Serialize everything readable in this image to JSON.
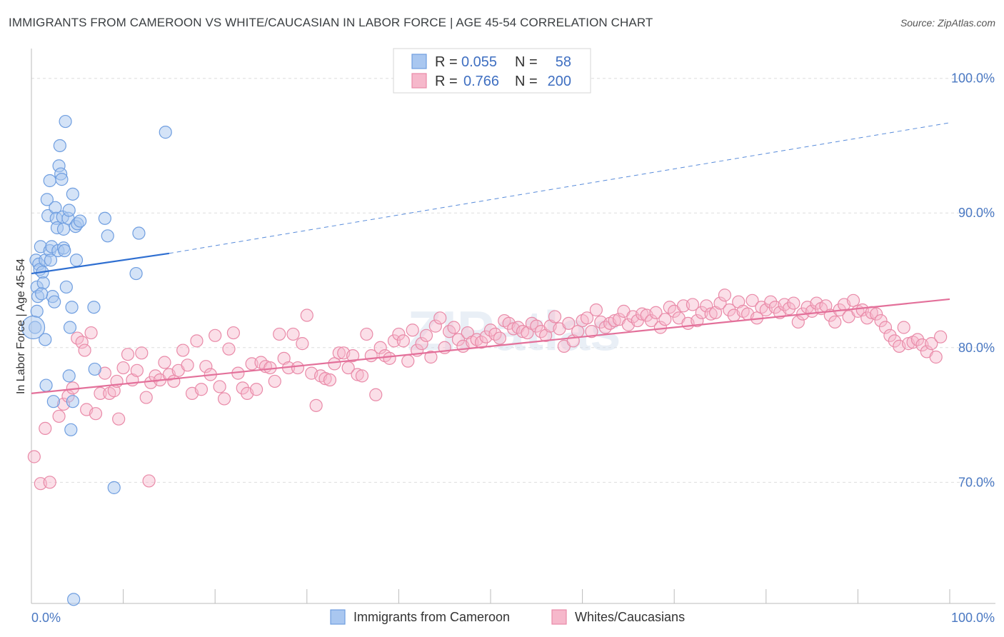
{
  "title": "IMMIGRANTS FROM CAMEROON VS WHITE/CAUCASIAN IN LABOR FORCE | AGE 45-54 CORRELATION CHART",
  "source": "Source: ZipAtlas.com",
  "watermark": "ZIPatlas",
  "colors": {
    "blue_fill": "#a9c7f0",
    "blue_stroke": "#6f9ee0",
    "blue_line": "#2f6fd1",
    "pink_fill": "#f6b8cb",
    "pink_stroke": "#e98aa8",
    "pink_line": "#e3709a",
    "grid": "#dddddd",
    "tick_text": "#4a78c2"
  },
  "legend": {
    "rows": [
      {
        "r_label": "R =",
        "r_value": "0.055",
        "n_label": "N =",
        "n_value": "58"
      },
      {
        "r_label": "R =",
        "r_value": "0.766",
        "n_label": "N =",
        "n_value": "200"
      }
    ]
  },
  "chart_data": {
    "type": "scatter",
    "title": "IMMIGRANTS FROM CAMEROON VS WHITE/CAUCASIAN IN LABOR FORCE | AGE 45-54 CORRELATION CHART",
    "xlabel": "",
    "ylabel": "In Labor Force | Age 45-54",
    "x_tick_labels": [
      "0.0%",
      "100.0%"
    ],
    "y_tick_labels": [
      "70.0%",
      "80.0%",
      "90.0%",
      "100.0%"
    ],
    "y_ticks": [
      70,
      80,
      90,
      100
    ],
    "xlim": [
      0,
      100
    ],
    "ylim": [
      61,
      102
    ],
    "grid": true,
    "legend_position": "bottom",
    "series": [
      {
        "name": "Immigrants from Cameroon",
        "color": "blue",
        "trend": {
          "x": [
            0,
            15
          ],
          "y": [
            85.5,
            87.0
          ],
          "extend_dashed_to": [
            100,
            96.7
          ]
        },
        "points": [
          [
            0.5,
            86.5
          ],
          [
            0.6,
            84.5
          ],
          [
            0.6,
            82.7
          ],
          [
            0.7,
            83.8
          ],
          [
            0.8,
            86.2
          ],
          [
            0.9,
            85.8
          ],
          [
            1.0,
            87.5
          ],
          [
            1.2,
            85.6
          ],
          [
            1.3,
            84.8
          ],
          [
            1.5,
            86.5
          ],
          [
            1.5,
            80.6
          ],
          [
            1.6,
            77.2
          ],
          [
            1.7,
            91.0
          ],
          [
            1.8,
            89.8
          ],
          [
            2.0,
            87.2
          ],
          [
            2.0,
            92.4
          ],
          [
            2.1,
            86.5
          ],
          [
            2.2,
            87.5
          ],
          [
            2.3,
            83.8
          ],
          [
            2.4,
            76.0
          ],
          [
            2.5,
            83.4
          ],
          [
            2.6,
            90.4
          ],
          [
            2.7,
            89.6
          ],
          [
            2.8,
            88.9
          ],
          [
            2.9,
            87.2
          ],
          [
            3.0,
            93.5
          ],
          [
            3.1,
            95.0
          ],
          [
            3.2,
            92.9
          ],
          [
            3.3,
            92.5
          ],
          [
            3.4,
            89.7
          ],
          [
            3.5,
            87.4
          ],
          [
            3.5,
            88.8
          ],
          [
            3.6,
            87.2
          ],
          [
            3.7,
            96.8
          ],
          [
            3.8,
            84.5
          ],
          [
            4.0,
            89.6
          ],
          [
            4.1,
            90.2
          ],
          [
            4.1,
            77.9
          ],
          [
            4.2,
            81.5
          ],
          [
            4.3,
            73.9
          ],
          [
            4.4,
            83.0
          ],
          [
            4.5,
            91.4
          ],
          [
            4.5,
            76.0
          ],
          [
            4.6,
            61.3
          ],
          [
            4.8,
            89.0
          ],
          [
            4.9,
            86.5
          ],
          [
            5.0,
            89.2
          ],
          [
            5.3,
            89.4
          ],
          [
            6.8,
            83.0
          ],
          [
            6.9,
            78.4
          ],
          [
            8.0,
            89.6
          ],
          [
            8.3,
            88.3
          ],
          [
            9.0,
            69.6
          ],
          [
            11.4,
            85.5
          ],
          [
            11.7,
            88.5
          ],
          [
            14.6,
            96.0
          ],
          [
            0.4,
            81.5
          ],
          [
            1.1,
            84.0
          ]
        ]
      },
      {
        "name": "Whites/Caucasians",
        "color": "pink",
        "trend": {
          "x": [
            0,
            100
          ],
          "y": [
            76.6,
            83.6
          ]
        },
        "points": [
          [
            0.3,
            71.9
          ],
          [
            1.0,
            69.9
          ],
          [
            1.5,
            74.0
          ],
          [
            2.0,
            70.0
          ],
          [
            3.0,
            74.9
          ],
          [
            3.5,
            75.8
          ],
          [
            4.0,
            76.4
          ],
          [
            4.5,
            77.0
          ],
          [
            5.0,
            80.7
          ],
          [
            5.5,
            80.4
          ],
          [
            5.8,
            79.8
          ],
          [
            6.0,
            75.4
          ],
          [
            6.5,
            81.1
          ],
          [
            7.0,
            75.1
          ],
          [
            7.5,
            76.6
          ],
          [
            8.0,
            78.1
          ],
          [
            8.5,
            76.6
          ],
          [
            9.0,
            76.8
          ],
          [
            9.3,
            77.5
          ],
          [
            9.5,
            74.7
          ],
          [
            10.0,
            78.5
          ],
          [
            10.5,
            79.5
          ],
          [
            11.0,
            77.6
          ],
          [
            11.5,
            78.3
          ],
          [
            12.0,
            79.6
          ],
          [
            12.5,
            76.3
          ],
          [
            12.8,
            70.1
          ],
          [
            13.0,
            77.4
          ],
          [
            13.5,
            77.9
          ],
          [
            14.0,
            77.6
          ],
          [
            14.5,
            78.9
          ],
          [
            15.0,
            78.0
          ],
          [
            15.5,
            77.5
          ],
          [
            16.0,
            78.3
          ],
          [
            16.5,
            79.8
          ],
          [
            17.0,
            78.7
          ],
          [
            17.5,
            76.6
          ],
          [
            18.0,
            80.5
          ],
          [
            18.5,
            76.9
          ],
          [
            19.0,
            78.6
          ],
          [
            19.5,
            78.0
          ],
          [
            20.0,
            80.9
          ],
          [
            20.5,
            77.1
          ],
          [
            21.0,
            76.2
          ],
          [
            21.5,
            79.9
          ],
          [
            22.0,
            81.1
          ],
          [
            22.5,
            78.1
          ],
          [
            23.0,
            77.0
          ],
          [
            23.5,
            76.6
          ],
          [
            24.0,
            78.8
          ],
          [
            24.5,
            76.9
          ],
          [
            25.0,
            78.9
          ],
          [
            25.5,
            78.6
          ],
          [
            26.0,
            78.5
          ],
          [
            26.5,
            77.5
          ],
          [
            27.0,
            81.0
          ],
          [
            27.5,
            79.2
          ],
          [
            28.0,
            78.5
          ],
          [
            28.5,
            81.0
          ],
          [
            29.0,
            78.5
          ],
          [
            29.5,
            80.3
          ],
          [
            30.0,
            82.4
          ],
          [
            30.5,
            78.1
          ],
          [
            31.0,
            75.7
          ],
          [
            31.5,
            77.9
          ],
          [
            32.0,
            77.7
          ],
          [
            32.5,
            77.6
          ],
          [
            33.0,
            78.8
          ],
          [
            33.5,
            79.6
          ],
          [
            34.0,
            79.6
          ],
          [
            34.5,
            78.5
          ],
          [
            35.0,
            79.4
          ],
          [
            35.5,
            78.0
          ],
          [
            36.0,
            77.9
          ],
          [
            36.5,
            81.0
          ],
          [
            37.0,
            79.4
          ],
          [
            37.5,
            76.5
          ],
          [
            38.0,
            80.0
          ],
          [
            38.5,
            79.4
          ],
          [
            39.0,
            79.2
          ],
          [
            39.5,
            80.5
          ],
          [
            40.0,
            81.0
          ],
          [
            40.5,
            80.5
          ],
          [
            41.0,
            79.0
          ],
          [
            41.5,
            81.3
          ],
          [
            42.0,
            79.8
          ],
          [
            42.5,
            80.3
          ],
          [
            43.0,
            80.9
          ],
          [
            43.5,
            79.3
          ],
          [
            44.0,
            81.6
          ],
          [
            44.5,
            82.2
          ],
          [
            45.0,
            80.0
          ],
          [
            45.5,
            81.2
          ],
          [
            46.0,
            81.5
          ],
          [
            46.5,
            80.6
          ],
          [
            47.0,
            80.1
          ],
          [
            47.5,
            81.1
          ],
          [
            48.0,
            80.4
          ],
          [
            48.5,
            80.6
          ],
          [
            49.0,
            80.4
          ],
          [
            49.5,
            80.8
          ],
          [
            50.0,
            81.3
          ],
          [
            50.5,
            81.0
          ],
          [
            51.0,
            80.7
          ],
          [
            51.5,
            82.0
          ],
          [
            52.0,
            81.8
          ],
          [
            52.5,
            81.4
          ],
          [
            53.0,
            81.5
          ],
          [
            53.5,
            81.2
          ],
          [
            54.0,
            81.1
          ],
          [
            54.5,
            81.8
          ],
          [
            55.0,
            81.6
          ],
          [
            55.5,
            81.2
          ],
          [
            56.0,
            80.9
          ],
          [
            56.5,
            81.6
          ],
          [
            57.0,
            82.3
          ],
          [
            57.5,
            81.4
          ],
          [
            58.0,
            80.1
          ],
          [
            58.5,
            81.8
          ],
          [
            59.0,
            80.5
          ],
          [
            59.5,
            81.2
          ],
          [
            60.0,
            82.0
          ],
          [
            60.5,
            82.2
          ],
          [
            61.0,
            81.2
          ],
          [
            61.5,
            82.8
          ],
          [
            62.0,
            81.9
          ],
          [
            62.5,
            81.5
          ],
          [
            63.0,
            81.8
          ],
          [
            63.5,
            82.0
          ],
          [
            64.0,
            82.1
          ],
          [
            64.5,
            82.7
          ],
          [
            65.0,
            81.7
          ],
          [
            65.5,
            82.3
          ],
          [
            66.0,
            82.0
          ],
          [
            66.5,
            82.5
          ],
          [
            67.0,
            82.4
          ],
          [
            67.5,
            82.0
          ],
          [
            68.0,
            82.6
          ],
          [
            68.5,
            81.5
          ],
          [
            69.0,
            82.1
          ],
          [
            69.5,
            83.0
          ],
          [
            70.0,
            82.7
          ],
          [
            70.5,
            82.2
          ],
          [
            71.0,
            83.1
          ],
          [
            71.5,
            81.8
          ],
          [
            72.0,
            83.2
          ],
          [
            72.5,
            82.0
          ],
          [
            73.0,
            82.6
          ],
          [
            73.5,
            83.1
          ],
          [
            74.0,
            82.5
          ],
          [
            74.5,
            82.6
          ],
          [
            75.0,
            83.3
          ],
          [
            75.5,
            83.9
          ],
          [
            76.0,
            82.8
          ],
          [
            76.5,
            82.4
          ],
          [
            77.0,
            83.4
          ],
          [
            77.5,
            82.7
          ],
          [
            78.0,
            82.5
          ],
          [
            78.5,
            83.5
          ],
          [
            79.0,
            82.2
          ],
          [
            79.5,
            83.0
          ],
          [
            80.0,
            82.8
          ],
          [
            80.5,
            83.4
          ],
          [
            81.0,
            83.0
          ],
          [
            81.5,
            82.6
          ],
          [
            82.0,
            83.2
          ],
          [
            82.5,
            82.9
          ],
          [
            83.0,
            83.3
          ],
          [
            83.5,
            81.9
          ],
          [
            84.0,
            82.5
          ],
          [
            84.5,
            83.0
          ],
          [
            85.0,
            82.7
          ],
          [
            85.5,
            83.3
          ],
          [
            86.0,
            82.9
          ],
          [
            86.5,
            83.1
          ],
          [
            87.0,
            82.4
          ],
          [
            87.5,
            81.9
          ],
          [
            88.0,
            82.8
          ],
          [
            88.5,
            83.2
          ],
          [
            89.0,
            82.3
          ],
          [
            89.5,
            83.5
          ],
          [
            90.0,
            82.7
          ],
          [
            90.5,
            82.8
          ],
          [
            91.0,
            82.2
          ],
          [
            91.5,
            82.6
          ],
          [
            92.0,
            82.5
          ],
          [
            92.5,
            82.0
          ],
          [
            93.0,
            81.5
          ],
          [
            93.5,
            80.9
          ],
          [
            94.0,
            80.5
          ],
          [
            94.5,
            80.1
          ],
          [
            95.0,
            81.5
          ],
          [
            95.5,
            80.3
          ],
          [
            96.0,
            80.4
          ],
          [
            96.5,
            80.6
          ],
          [
            97.0,
            80.2
          ],
          [
            97.5,
            79.7
          ],
          [
            98.0,
            80.3
          ],
          [
            98.5,
            79.3
          ],
          [
            99.0,
            80.8
          ]
        ]
      }
    ]
  }
}
